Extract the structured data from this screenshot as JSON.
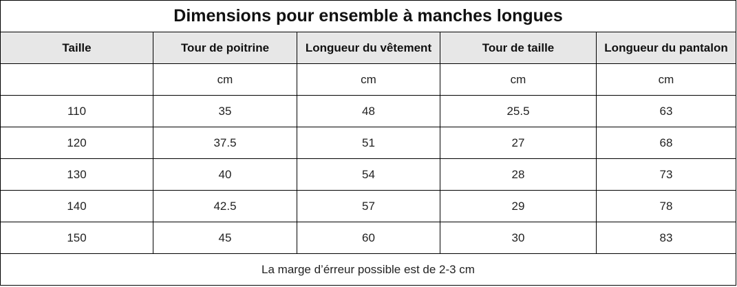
{
  "table": {
    "title": "Dimensions pour ensemble à manches longues",
    "headers": [
      "Taille",
      "Tour de poitrine",
      "Longueur du vêtement",
      "Tour de taille",
      "Longueur du pantalon"
    ],
    "units": [
      "",
      "cm",
      "cm",
      "cm",
      "cm"
    ],
    "rows": [
      [
        "110",
        "35",
        "48",
        "25.5",
        "63"
      ],
      [
        "120",
        "37.5",
        "51",
        "27",
        "68"
      ],
      [
        "130",
        "40",
        "54",
        "28",
        "73"
      ],
      [
        "140",
        "42.5",
        "57",
        "29",
        "78"
      ],
      [
        "150",
        "45",
        "60",
        "30",
        "83"
      ]
    ],
    "note": "La marge d’érreur possible est de 2-3 cm"
  },
  "colors": {
    "header_background": "#e7e7e7",
    "border": "#000000",
    "background": "#ffffff"
  }
}
